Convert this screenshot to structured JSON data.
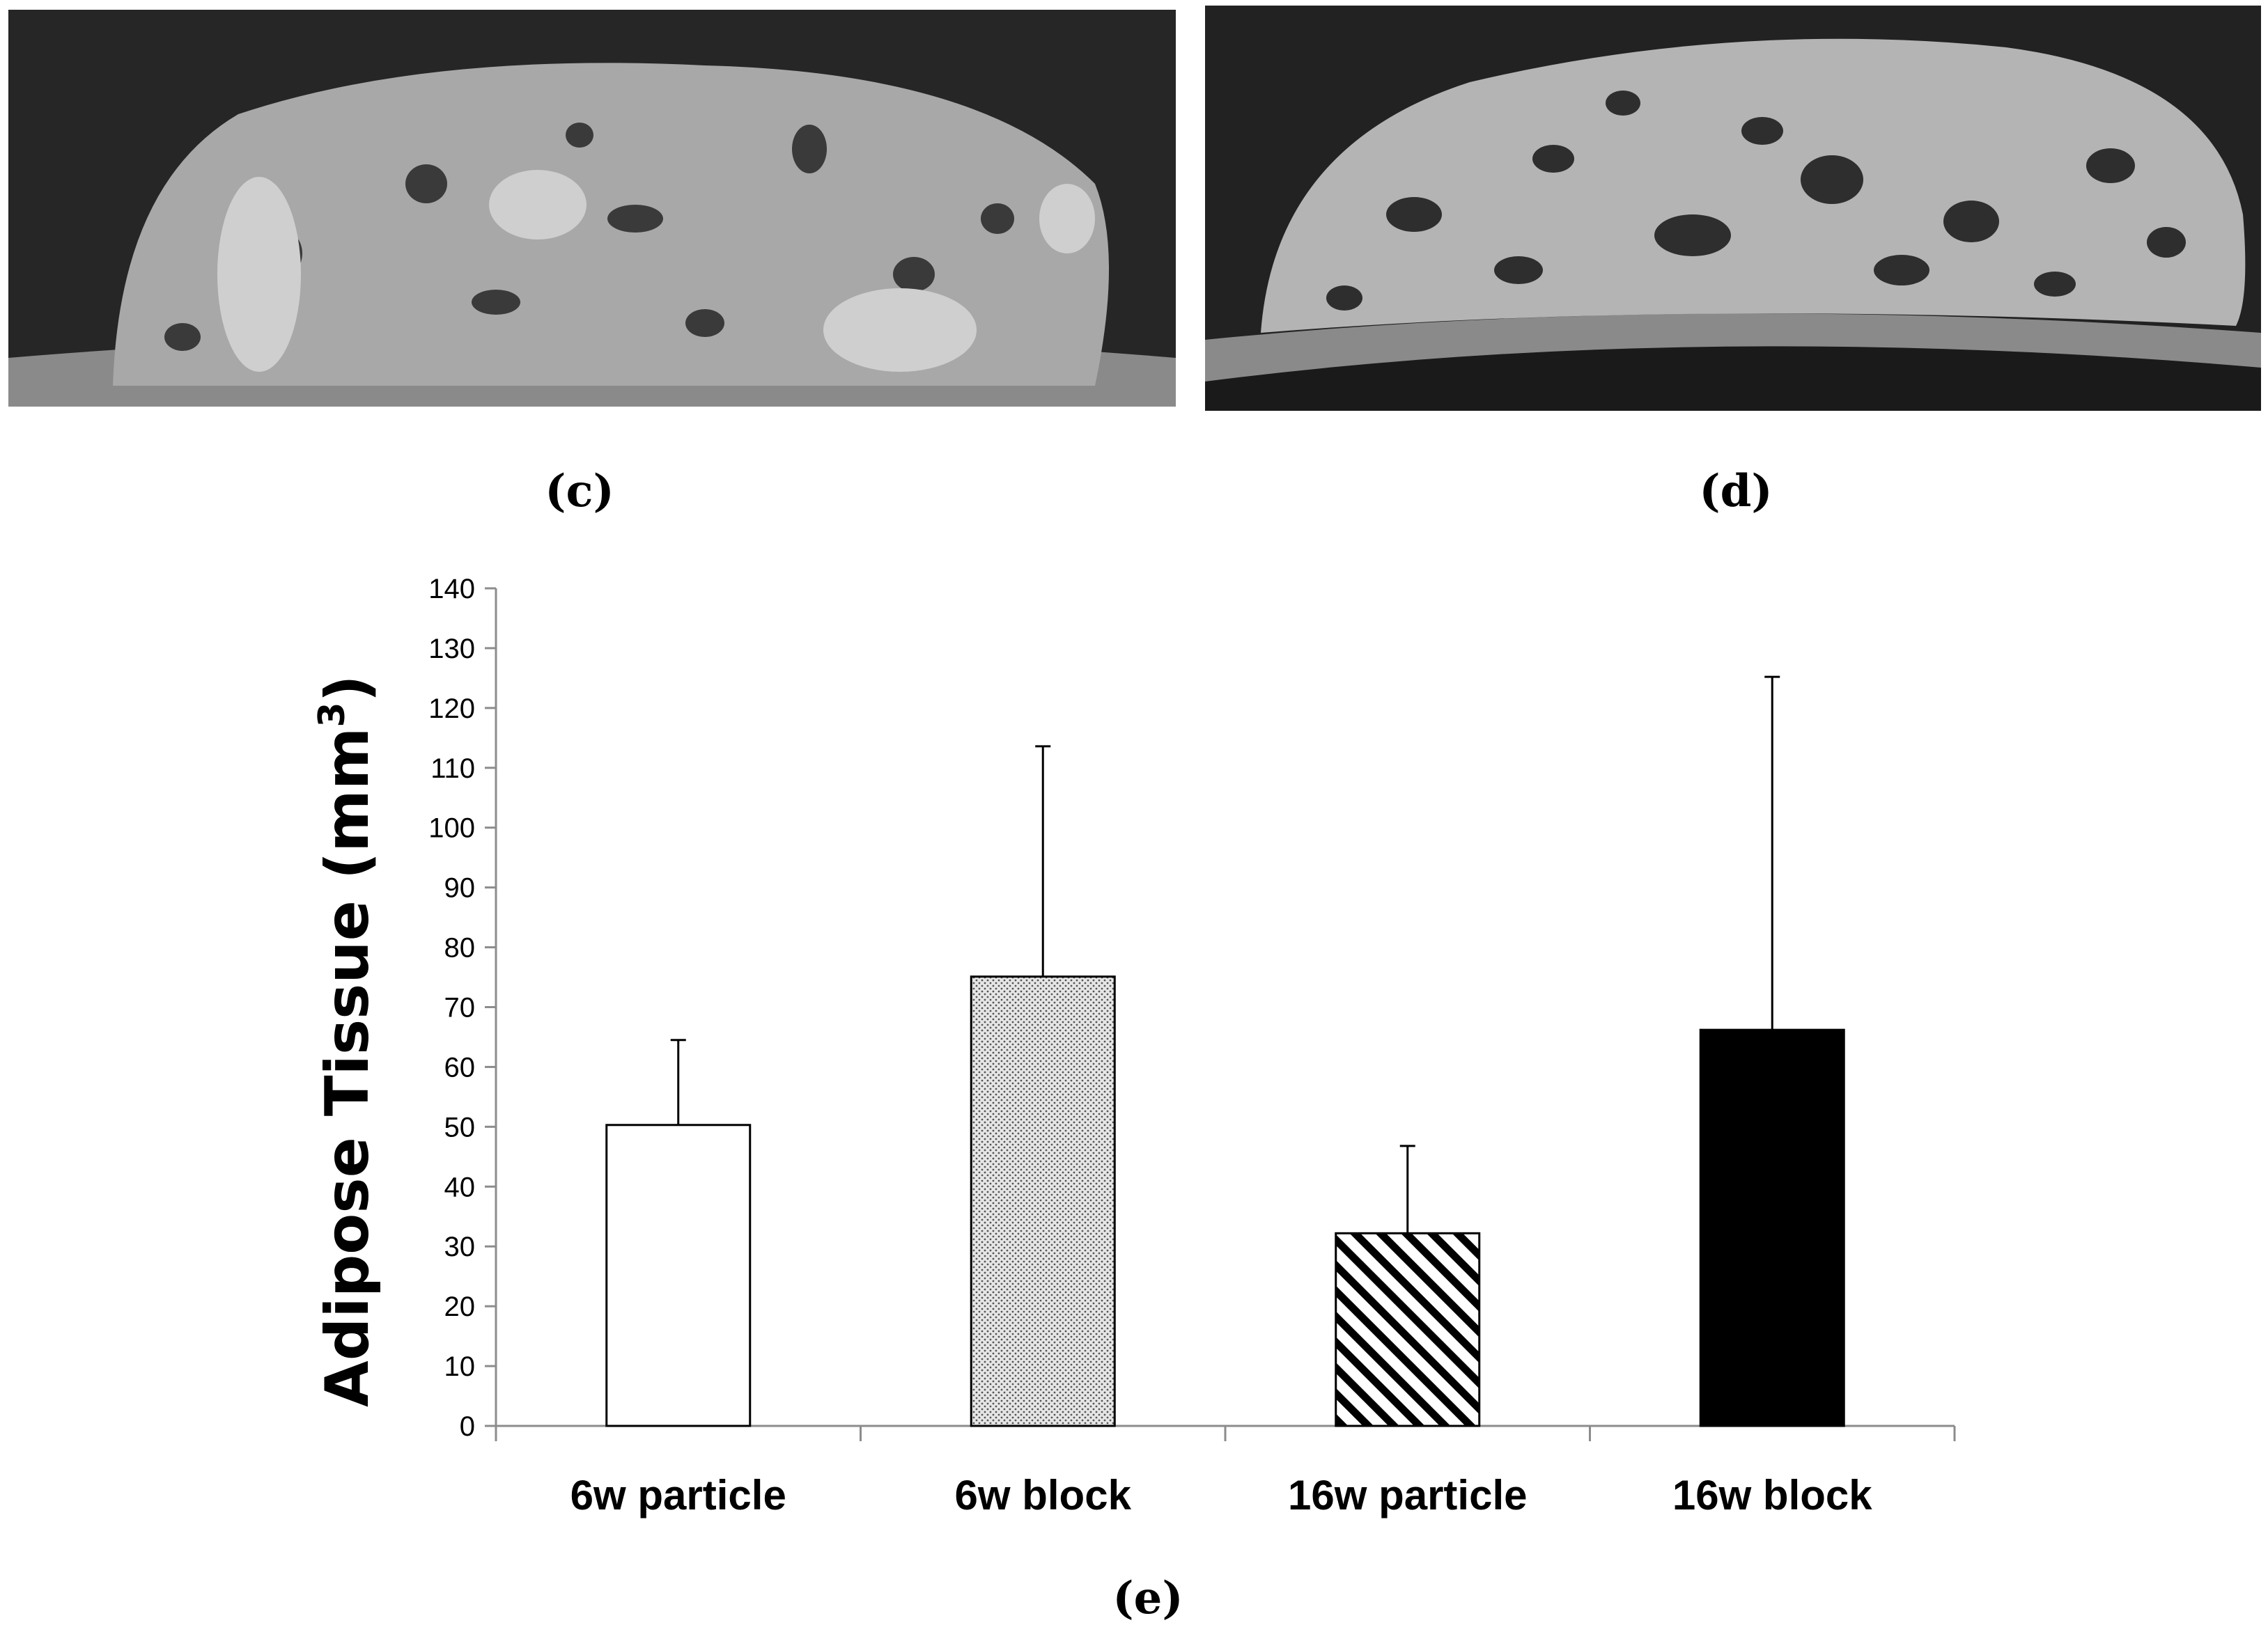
{
  "panels": {
    "c_label": "(c)",
    "d_label": "(d)",
    "e_label": "(e)"
  },
  "chart_data": {
    "type": "bar",
    "title": "",
    "xlabel": "",
    "ylabel": "Adipose Tissue (mm",
    "ylabel_superscript": "3",
    "ylabel_close": ")",
    "categories": [
      "6w particle",
      "6w block",
      "16w particle",
      "16w block"
    ],
    "values": [
      50.3,
      75.1,
      32.2,
      66.2
    ],
    "error_upper": [
      64.5,
      113.6,
      46.8,
      125.2
    ],
    "fills": [
      "white",
      "dotted",
      "diagonal-hatch",
      "black"
    ],
    "ylim": [
      0,
      140
    ],
    "yticks": [
      0,
      10,
      20,
      30,
      40,
      50,
      60,
      70,
      80,
      90,
      100,
      110,
      120,
      130,
      140
    ],
    "grid": false,
    "legend": "none"
  }
}
